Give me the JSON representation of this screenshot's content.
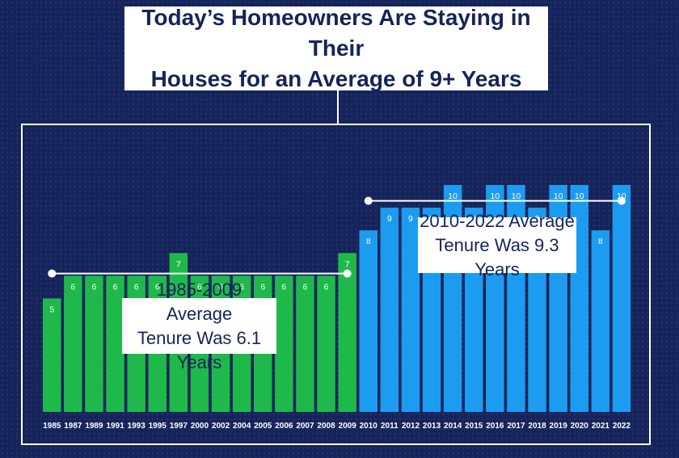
{
  "title": {
    "line1": "Today’s Homeowners Are Staying in Their",
    "line2": "Houses for an Average of 9+ Years"
  },
  "annotations": {
    "left": {
      "line1": "1985-2009 Average",
      "line2": "Tenure Was 6.1 Years"
    },
    "right": {
      "line1": "2010-2022 Average",
      "line2": "Tenure Was 9.3 Years"
    }
  },
  "colors": {
    "background": "#15245a",
    "green": "#1fb84a",
    "blue": "#1c9cf0",
    "white": "#ffffff"
  },
  "chart_data": {
    "type": "bar",
    "title": "Today’s Homeowners Are Staying in Their Houses for an Average of 9+ Years",
    "xlabel": "",
    "ylabel": "",
    "ylim": [
      0,
      11.6
    ],
    "categories": [
      "1985",
      "1987",
      "1989",
      "1991",
      "1993",
      "1995",
      "1997",
      "2000",
      "2002",
      "2004",
      "2005",
      "2006",
      "2007",
      "2008",
      "2009",
      "2010",
      "2011",
      "2012",
      "2013",
      "2014",
      "2015",
      "2016",
      "2017",
      "2018",
      "2019",
      "2020",
      "2021",
      "2022"
    ],
    "values": [
      5,
      6,
      6,
      6,
      6,
      6,
      7,
      6,
      6,
      6,
      6,
      6,
      6,
      6,
      7,
      8,
      9,
      9,
      9,
      10,
      9,
      10,
      10,
      9,
      10,
      10,
      8,
      10
    ],
    "series_groups": [
      {
        "name": "1985-2009",
        "from": 0,
        "to": 14,
        "color": "#1fb84a",
        "average": 6.1
      },
      {
        "name": "2010-2022",
        "from": 15,
        "to": 27,
        "color": "#1c9cf0",
        "average": 9.3
      }
    ]
  }
}
